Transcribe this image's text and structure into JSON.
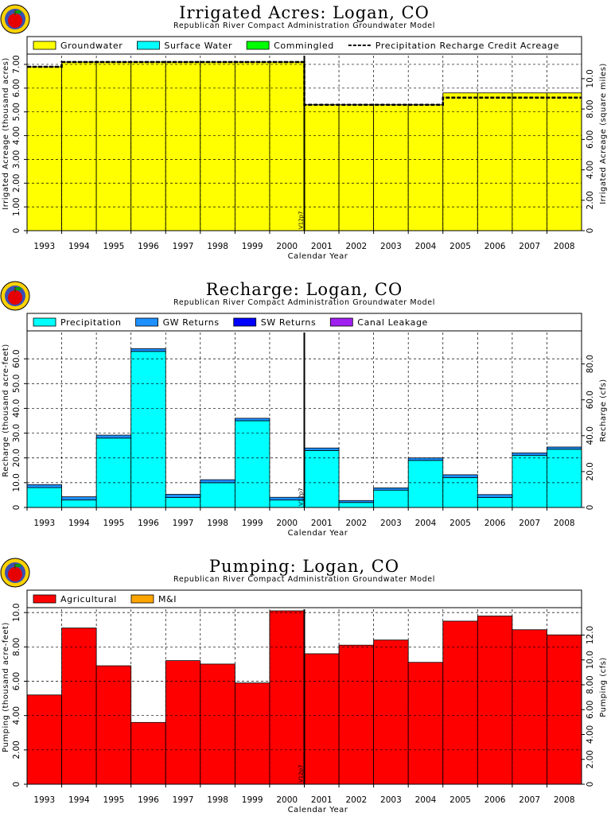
{
  "chart_data": [
    {
      "type": "area",
      "title": "Irrigated Acres: Logan, CO",
      "subtitle": "Republican River Compact Administration Groundwater Model",
      "xlabel": "Calendar Year",
      "ylabel": "Irrigated Acreage (thousand acres)",
      "ylabel_right": "Irrigated Acreage (square miles)",
      "categories": [
        "1993",
        "1994",
        "1995",
        "1996",
        "1997",
        "1998",
        "1999",
        "2000",
        "2001",
        "2002",
        "2003",
        "2004",
        "2005",
        "2006",
        "2007",
        "2008"
      ],
      "ylim": [
        0,
        7.3
      ],
      "yticks": [
        0,
        1.0,
        2.0,
        3.0,
        4.0,
        5.0,
        6.0,
        7.0
      ],
      "yticklabels": [
        "0",
        "1.00",
        "2.00",
        "3.00",
        "4.00",
        "5.00",
        "6.00",
        "7.00"
      ],
      "yticks_right": [
        0,
        2.0,
        4.0,
        6.0,
        8.0,
        10.0
      ],
      "yticklabels_right": [
        "0",
        "2.00",
        "4.00",
        "6.00",
        "8.00",
        "10.0"
      ],
      "right_scale": 640,
      "series": [
        {
          "name": "Groundwater",
          "color": "#ffff00",
          "values": [
            6.9,
            7.1,
            7.1,
            7.1,
            7.1,
            7.1,
            7.1,
            7.1,
            5.3,
            5.3,
            5.3,
            5.3,
            5.8,
            5.8,
            5.8,
            5.8
          ]
        },
        {
          "name": "Surface Water",
          "color": "#00ffff",
          "values": [
            0,
            0,
            0,
            0,
            0,
            0,
            0,
            0,
            0,
            0,
            0,
            0,
            0,
            0,
            0,
            0
          ]
        },
        {
          "name": "Commingled",
          "color": "#00ff00",
          "values": [
            0,
            0,
            0,
            0,
            0,
            0,
            0,
            0,
            0,
            0,
            0,
            0,
            0,
            0,
            0,
            0
          ]
        }
      ],
      "line_series": {
        "name": "Precipitation Recharge Credit Acreage",
        "style": "dashed",
        "values": [
          6.9,
          7.1,
          7.1,
          7.1,
          7.1,
          7.1,
          7.1,
          7.1,
          5.3,
          5.3,
          5.3,
          5.3,
          5.6,
          5.6,
          5.6,
          5.6
        ]
      },
      "marker": {
        "label": "V12p7",
        "after_index": 7
      },
      "grid": true,
      "legend": "top"
    },
    {
      "type": "bar",
      "title": "Recharge: Logan, CO",
      "subtitle": "Republican River Compact Administration Groundwater Model",
      "xlabel": "Calendar Year",
      "ylabel": "Recharge (thousand acre-feet)",
      "ylabel_right": "Recharge (cfs)",
      "categories": [
        "1993",
        "1994",
        "1995",
        "1996",
        "1997",
        "1998",
        "1999",
        "2000",
        "2001",
        "2002",
        "2003",
        "2004",
        "2005",
        "2006",
        "2007",
        "2008"
      ],
      "ylim": [
        0,
        70
      ],
      "yticks": [
        0,
        10,
        20,
        30,
        40,
        50,
        60
      ],
      "yticklabels": [
        "0",
        "10.0",
        "20.0",
        "30.0",
        "40.0",
        "50.0",
        "60.0"
      ],
      "yticks_right": [
        0,
        20,
        40,
        60,
        80
      ],
      "yticklabels_right": [
        "0",
        "20.0",
        "40.0",
        "60.0",
        "80.0"
      ],
      "right_scale": 1.381,
      "series": [
        {
          "name": "Precipitation",
          "color": "#00ffff",
          "values": [
            8.0,
            3.0,
            28.0,
            63.0,
            4.0,
            10.0,
            35.0,
            3.0,
            23.0,
            2.0,
            7.0,
            19.0,
            12.0,
            4.0,
            21.0,
            23.5
          ]
        },
        {
          "name": "GW Returns",
          "color": "#1e90ff",
          "values": [
            1.2,
            1.3,
            1.2,
            1.1,
            1.3,
            1.2,
            1.0,
            1.1,
            1.0,
            0.8,
            0.9,
            1.0,
            1.2,
            1.2,
            1.0,
            0.9
          ]
        },
        {
          "name": "SW Returns",
          "color": "#0000ff",
          "values": [
            0,
            0,
            0,
            0,
            0,
            0,
            0,
            0,
            0,
            0,
            0,
            0,
            0,
            0,
            0,
            0
          ]
        },
        {
          "name": "Canal Leakage",
          "color": "#a020f0",
          "values": [
            0,
            0,
            0,
            0,
            0,
            0,
            0,
            0,
            0,
            0,
            0,
            0,
            0,
            0,
            0,
            0
          ]
        }
      ],
      "marker": {
        "label": "V12p7",
        "after_index": 7
      },
      "grid": true,
      "legend": "top"
    },
    {
      "type": "bar",
      "title": "Pumping: Logan, CO",
      "subtitle": "Republican River Compact Administration Groundwater Model",
      "xlabel": "Calendar Year",
      "ylabel": "Pumping (thousand acre-feet)",
      "ylabel_right": "Pumping (cfs)",
      "categories": [
        "1993",
        "1994",
        "1995",
        "1996",
        "1997",
        "1998",
        "1999",
        "2000",
        "2001",
        "2002",
        "2003",
        "2004",
        "2005",
        "2006",
        "2007",
        "2008"
      ],
      "ylim": [
        0,
        10.1
      ],
      "yticks": [
        0,
        2.0,
        4.0,
        6.0,
        8.0,
        10.0
      ],
      "yticklabels": [
        "0",
        "2.00",
        "4.00",
        "6.00",
        "8.00",
        "10.0"
      ],
      "yticks_right": [
        0,
        2.0,
        4.0,
        6.0,
        8.0,
        10.0,
        12.0
      ],
      "yticklabels_right": [
        "0",
        "2.00",
        "4.00",
        "6.00",
        "8.00",
        "10.0",
        "12.0"
      ],
      "right_scale": 1.381,
      "series": [
        {
          "name": "Agricultural",
          "color": "#ff0000",
          "values": [
            5.2,
            9.1,
            6.9,
            3.6,
            7.2,
            7.0,
            5.9,
            10.1,
            7.6,
            8.1,
            8.4,
            7.1,
            9.5,
            9.8,
            9.0,
            8.7
          ]
        },
        {
          "name": "M&I",
          "color": "#ffa500",
          "values": [
            0,
            0,
            0,
            0,
            0,
            0,
            0,
            0,
            0,
            0,
            0,
            0,
            0,
            0,
            0,
            0
          ]
        }
      ],
      "marker": {
        "label": "V12p7",
        "after_index": 7
      },
      "grid": true,
      "legend": "top"
    }
  ]
}
